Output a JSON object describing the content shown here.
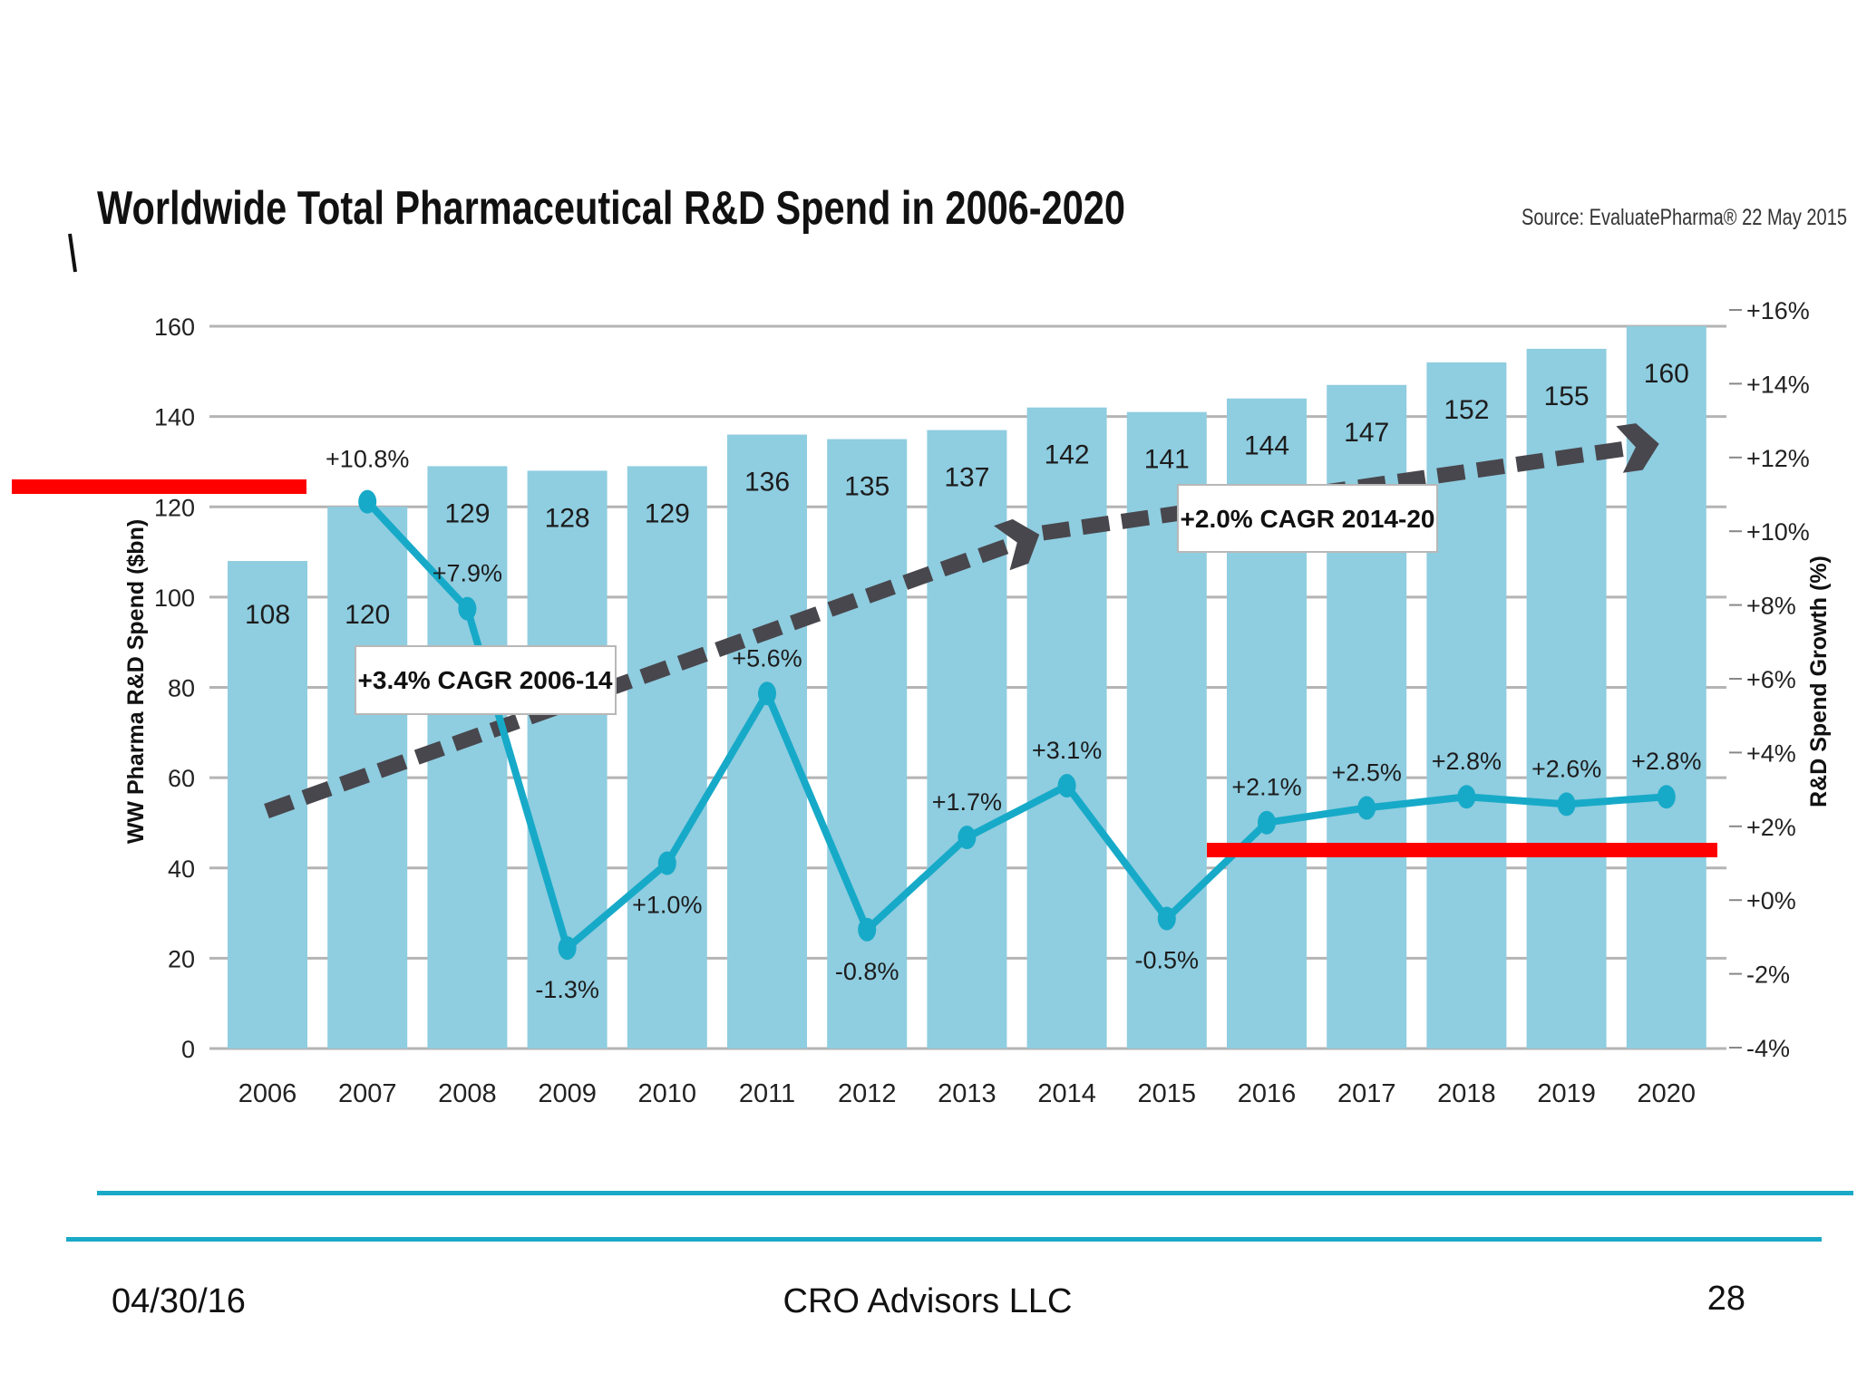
{
  "slide": {
    "date": "04/30/16",
    "company": "CRO Advisors LLC",
    "page_number": "28",
    "accent_line_color": "#1aa9c6",
    "highlight_color": "#ff0000"
  },
  "chart_data": {
    "type": "bar+line",
    "title": "Worldwide Total Pharmaceutical R&D Spend in 2006-2020",
    "source": "Source: EvaluatePharma® 22 May 2015",
    "ylabel": "WW Pharma R&D Spend ($bn)",
    "y2label": "R&D Spend Growth (%)",
    "ylim": [
      0,
      160
    ],
    "y2lim": [
      -4,
      16
    ],
    "yticks": [
      "0",
      "20",
      "40",
      "60",
      "80",
      "100",
      "120",
      "140",
      "160"
    ],
    "y2ticks": [
      "-4%",
      "-2%",
      "+0%",
      "+2%",
      "+4%",
      "+6%",
      "+8%",
      "+10%",
      "+12%",
      "+14%",
      "+16%"
    ],
    "grid": true,
    "categories": [
      "2006",
      "2007",
      "2008",
      "2009",
      "2010",
      "2011",
      "2012",
      "2013",
      "2014",
      "2015",
      "2016",
      "2017",
      "2018",
      "2019",
      "2020"
    ],
    "series": [
      {
        "type": "bar",
        "axis": "left",
        "color": "#8fcde0",
        "values": [
          108,
          120,
          129,
          128,
          129,
          136,
          135,
          137,
          142,
          141,
          144,
          147,
          152,
          155,
          160
        ],
        "labels": [
          "108",
          "120",
          "129",
          "128",
          "129",
          "136",
          "135",
          "137",
          "142",
          "141",
          "144",
          "147",
          "152",
          "155",
          "160"
        ]
      },
      {
        "type": "line",
        "axis": "right",
        "color": "#17aac8",
        "values": [
          null,
          10.8,
          7.9,
          -1.3,
          1.0,
          5.6,
          -0.8,
          1.7,
          3.1,
          -0.5,
          2.1,
          2.5,
          2.8,
          2.6,
          2.8
        ],
        "labels": [
          "",
          "+10.8%",
          "+7.9%",
          "-1.3%",
          "+1.0%",
          "+5.6%",
          "-0.8%",
          "+1.7%",
          "+3.1%",
          "-0.5%",
          "+2.1%",
          "+2.5%",
          "+2.8%",
          "+2.6%",
          "+2.8%"
        ]
      }
    ],
    "annotations": [
      {
        "text": "+3.4% CAGR 2006-14",
        "from": "2006",
        "to": "2014"
      },
      {
        "text": "+2.0% CAGR 2014-20",
        "from": "2014",
        "to": "2020"
      }
    ],
    "trend_color": "#48474d"
  }
}
